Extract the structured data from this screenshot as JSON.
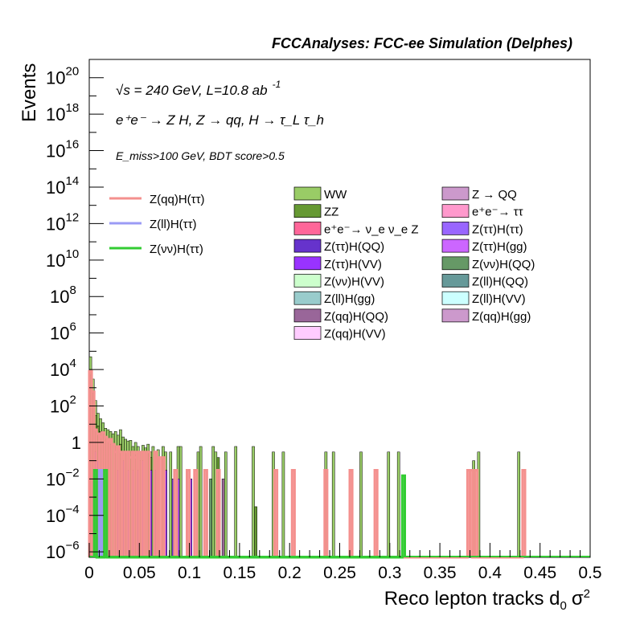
{
  "chart_data": {
    "type": "bar",
    "title": "FCCAnalyses: FCC-ee Simulation (Delphes)",
    "xlabel_main": "Reco lepton tracks d",
    "xlabel_sub": "0",
    "xlabel_tail": "σ",
    "xlabel_sup": "2",
    "ylabel": "Events",
    "log_y": true,
    "xlim": [
      0,
      0.5
    ],
    "ylim": [
      1e-06,
      1e+21
    ],
    "x_ticks": [
      "0",
      "0.05",
      "0.1",
      "0.15",
      "0.2",
      "0.25",
      "0.3",
      "0.35",
      "0.4",
      "0.45",
      "0.5"
    ],
    "y_ticks": [
      {
        "exp": -6,
        "base": "10",
        "sup": "−6"
      },
      {
        "exp": -4,
        "base": "10",
        "sup": "−4"
      },
      {
        "exp": -2,
        "base": "10",
        "sup": "−2"
      },
      {
        "exp": 0,
        "base": "1",
        "sup": ""
      },
      {
        "exp": 2,
        "base": "10",
        "sup": "2"
      },
      {
        "exp": 4,
        "base": "10",
        "sup": "4"
      },
      {
        "exp": 6,
        "base": "10",
        "sup": "6"
      },
      {
        "exp": 8,
        "base": "10",
        "sup": "8"
      },
      {
        "exp": 10,
        "base": "10",
        "sup": "10"
      },
      {
        "exp": 12,
        "base": "10",
        "sup": "12"
      },
      {
        "exp": 14,
        "base": "10",
        "sup": "14"
      },
      {
        "exp": 16,
        "base": "10",
        "sup": "16"
      },
      {
        "exp": 18,
        "base": "10",
        "sup": "18"
      },
      {
        "exp": 20,
        "base": "10",
        "sup": "20"
      }
    ],
    "annotations": {
      "line1": "√s = 240 GeV, L=10.8 ab",
      "line1_sup": "-1",
      "line2": "e⁺e⁻ → Z H, Z → qq, H → τ_L τ_h",
      "line3": "E_miss>100 GeV, BDT score>0.5"
    },
    "signal_legend": [
      {
        "name": "Z(qq)H(ττ)",
        "color": "#f4908e"
      },
      {
        "name": "Z(ll)H(ττ)",
        "color": "#9b9bf5"
      },
      {
        "name": "Z(νν)H(ττ)",
        "color": "#33cc33"
      }
    ],
    "background_legend": [
      {
        "name": "WW",
        "color": "#99cc66"
      },
      {
        "name": "Z → QQ",
        "color": "#cc99cc"
      },
      {
        "name": "ZZ",
        "color": "#669933"
      },
      {
        "name": "e⁺e⁻→ ττ",
        "color": "#ff99cc"
      },
      {
        "name": "e⁺e⁻→ ν_e ν_e Z",
        "color": "#ff6699"
      },
      {
        "name": "Z(ττ)H(ττ)",
        "color": "#9966ff"
      },
      {
        "name": "Z(ττ)H(QQ)",
        "color": "#6633cc"
      },
      {
        "name": "Z(ττ)H(gg)",
        "color": "#cc66ff"
      },
      {
        "name": "Z(ττ)H(VV)",
        "color": "#9933ff"
      },
      {
        "name": "Z(νν)H(QQ)",
        "color": "#669966"
      },
      {
        "name": "Z(νν)H(VV)",
        "color": "#ccffcc"
      },
      {
        "name": "Z(ll)H(QQ)",
        "color": "#669999"
      },
      {
        "name": "Z(ll)H(gg)",
        "color": "#99cccc"
      },
      {
        "name": "Z(ll)H(VV)",
        "color": "#ccffff"
      },
      {
        "name": "Z(qq)H(QQ)",
        "color": "#996699"
      },
      {
        "name": "Z(qq)H(gg)",
        "color": "#cc99cc"
      },
      {
        "name": "Z(qq)H(VV)",
        "color": "#ffccff"
      }
    ],
    "ww_bins": [
      {
        "x": 0.0,
        "y": 50000
      },
      {
        "x": 0.0025,
        "y": 3000
      },
      {
        "x": 0.005,
        "y": 200
      },
      {
        "x": 0.0075,
        "y": 40
      },
      {
        "x": 0.01,
        "y": 20
      },
      {
        "x": 0.0125,
        "y": 12
      },
      {
        "x": 0.015,
        "y": 6
      },
      {
        "x": 0.0175,
        "y": 5
      },
      {
        "x": 0.02,
        "y": 4
      },
      {
        "x": 0.0225,
        "y": 3
      },
      {
        "x": 0.025,
        "y": 4
      },
      {
        "x": 0.0275,
        "y": 2.5
      },
      {
        "x": 0.03,
        "y": 5
      },
      {
        "x": 0.0325,
        "y": 2
      },
      {
        "x": 0.035,
        "y": 1.5
      },
      {
        "x": 0.0375,
        "y": 1.2
      },
      {
        "x": 0.04,
        "y": 1.3
      },
      {
        "x": 0.0425,
        "y": 0.6
      },
      {
        "x": 0.045,
        "y": 1.0
      },
      {
        "x": 0.0475,
        "y": 0.6
      },
      {
        "x": 0.05,
        "y": 0.3
      },
      {
        "x": 0.0525,
        "y": 0.7
      },
      {
        "x": 0.055,
        "y": 0.5
      },
      {
        "x": 0.0575,
        "y": 0.8
      },
      {
        "x": 0.06,
        "y": 0.3
      },
      {
        "x": 0.0625,
        "y": 0.6
      },
      {
        "x": 0.065,
        "y": 0.3
      },
      {
        "x": 0.0675,
        "y": 0.4
      },
      {
        "x": 0.0725,
        "y": 0.6
      },
      {
        "x": 0.075,
        "y": 0.3
      },
      {
        "x": 0.08,
        "y": 0.3
      },
      {
        "x": 0.0875,
        "y": 0.6
      },
      {
        "x": 0.09,
        "y": 0.6
      },
      {
        "x": 0.1075,
        "y": 0.3
      },
      {
        "x": 0.11,
        "y": 0.6
      },
      {
        "x": 0.1225,
        "y": 0.6
      },
      {
        "x": 0.125,
        "y": 0.3
      },
      {
        "x": 0.135,
        "y": 0.3
      },
      {
        "x": 0.145,
        "y": 0.6
      },
      {
        "x": 0.1625,
        "y": 0.6
      },
      {
        "x": 0.1825,
        "y": 0.3
      },
      {
        "x": 0.1925,
        "y": 0.3
      },
      {
        "x": 0.235,
        "y": 0.3
      },
      {
        "x": 0.2425,
        "y": 0.3
      },
      {
        "x": 0.27,
        "y": 0.3
      },
      {
        "x": 0.2975,
        "y": 0.3
      },
      {
        "x": 0.3075,
        "y": 0.3
      },
      {
        "x": 0.3825,
        "y": 0.1
      },
      {
        "x": 0.3875,
        "y": 0.3
      },
      {
        "x": 0.4275,
        "y": 0.3
      }
    ],
    "zz_bins": [
      {
        "x": 0.0,
        "y": 5000
      },
      {
        "x": 0.0025,
        "y": 500
      },
      {
        "x": 0.005,
        "y": 30
      },
      {
        "x": 0.0075,
        "y": 8
      },
      {
        "x": 0.01,
        "y": 4
      },
      {
        "x": 0.0125,
        "y": 3
      },
      {
        "x": 0.015,
        "y": 1.5
      },
      {
        "x": 0.0175,
        "y": 1.2
      },
      {
        "x": 0.02,
        "y": 0.8
      },
      {
        "x": 0.025,
        "y": 0.6
      },
      {
        "x": 0.03,
        "y": 0.8
      },
      {
        "x": 0.035,
        "y": 0.3
      },
      {
        "x": 0.04,
        "y": 0.3
      },
      {
        "x": 0.045,
        "y": 0.2
      },
      {
        "x": 0.05,
        "y": 0.1
      },
      {
        "x": 0.0575,
        "y": 0.3
      },
      {
        "x": 0.06,
        "y": 0.15
      },
      {
        "x": 0.0725,
        "y": 0.15
      },
      {
        "x": 0.1275,
        "y": 0.15
      },
      {
        "x": 0.165,
        "y": 0.0003
      }
    ],
    "zqqhtautau_bins": [
      {
        "x": 0.0,
        "y": 8000
      },
      {
        "x": 0.0025,
        "y": 600
      },
      {
        "x": 0.005,
        "y": 5
      },
      {
        "x": 0.0075,
        "y": 3
      },
      {
        "x": 0.01,
        "y": 2
      },
      {
        "x": 0.0125,
        "y": 3.5
      },
      {
        "x": 0.015,
        "y": 2
      },
      {
        "x": 0.0175,
        "y": 1.2
      },
      {
        "x": 0.02,
        "y": 1.5
      },
      {
        "x": 0.0225,
        "y": 0.8
      },
      {
        "x": 0.025,
        "y": 0.3
      },
      {
        "x": 0.0275,
        "y": 0.6
      },
      {
        "x": 0.03,
        "y": 0.3
      },
      {
        "x": 0.0325,
        "y": 0.15
      },
      {
        "x": 0.035,
        "y": 0.3
      },
      {
        "x": 0.0375,
        "y": 0.3
      },
      {
        "x": 0.04,
        "y": 0.15
      },
      {
        "x": 0.0425,
        "y": 0.3
      },
      {
        "x": 0.045,
        "y": 0.15
      },
      {
        "x": 0.0475,
        "y": 0.3
      },
      {
        "x": 0.0525,
        "y": 0.3
      },
      {
        "x": 0.0575,
        "y": 0.3
      },
      {
        "x": 0.065,
        "y": 0.3
      },
      {
        "x": 0.0675,
        "y": 0.15
      },
      {
        "x": 0.0725,
        "y": 0.15
      },
      {
        "x": 0.085,
        "y": 0.03
      },
      {
        "x": 0.0975,
        "y": 0.03
      },
      {
        "x": 0.105,
        "y": 0.03
      },
      {
        "x": 0.115,
        "y": 0.03
      },
      {
        "x": 0.1275,
        "y": 0.03
      },
      {
        "x": 0.185,
        "y": 0.03
      },
      {
        "x": 0.2025,
        "y": 0.03
      },
      {
        "x": 0.235,
        "y": 0.03
      },
      {
        "x": 0.26,
        "y": 0.03
      },
      {
        "x": 0.285,
        "y": 0.03
      },
      {
        "x": 0.3775,
        "y": 0.03
      },
      {
        "x": 0.38,
        "y": 0.03
      },
      {
        "x": 0.385,
        "y": 0.03
      },
      {
        "x": 0.4325,
        "y": 0.03
      }
    ],
    "zvvhtautau_bins": [
      {
        "x": 0.005,
        "y": 0.03
      },
      {
        "x": 0.015,
        "y": 0.03
      },
      {
        "x": 0.3125,
        "y": 0.015
      }
    ],
    "zllhtautau_bins": [
      {
        "x": 0.01,
        "y": 0.03
      }
    ],
    "purple_bins": [
      {
        "x": 0.005,
        "y": 0.3,
        "c": "#6633cc"
      },
      {
        "x": 0.0075,
        "y": 0.1,
        "c": "#9933ff"
      },
      {
        "x": 0.0125,
        "y": 0.03,
        "c": "#669966"
      },
      {
        "x": 0.0275,
        "y": 0.03,
        "c": "#6633cc"
      },
      {
        "x": 0.0325,
        "y": 0.1,
        "c": "#6633cc"
      },
      {
        "x": 0.0375,
        "y": 0.03,
        "c": "#9933ff"
      },
      {
        "x": 0.0425,
        "y": 0.03,
        "c": "#9933ff"
      },
      {
        "x": 0.0475,
        "y": 0.03,
        "c": "#6633cc"
      },
      {
        "x": 0.0525,
        "y": 0.1,
        "c": "#9933ff"
      },
      {
        "x": 0.06,
        "y": 0.03,
        "c": "#9933ff"
      },
      {
        "x": 0.065,
        "y": 0.03,
        "c": "#6633cc"
      },
      {
        "x": 0.075,
        "y": 0.03,
        "c": "#9933ff"
      },
      {
        "x": 0.0825,
        "y": 0.01,
        "c": "#6633cc"
      },
      {
        "x": 0.0875,
        "y": 0.01,
        "c": "#9933ff"
      },
      {
        "x": 0.1,
        "y": 0.01,
        "c": "#9933ff"
      },
      {
        "x": 0.12,
        "y": 0.01,
        "c": "#669966"
      },
      {
        "x": 0.1325,
        "y": 0.01,
        "c": "#996699"
      }
    ]
  }
}
